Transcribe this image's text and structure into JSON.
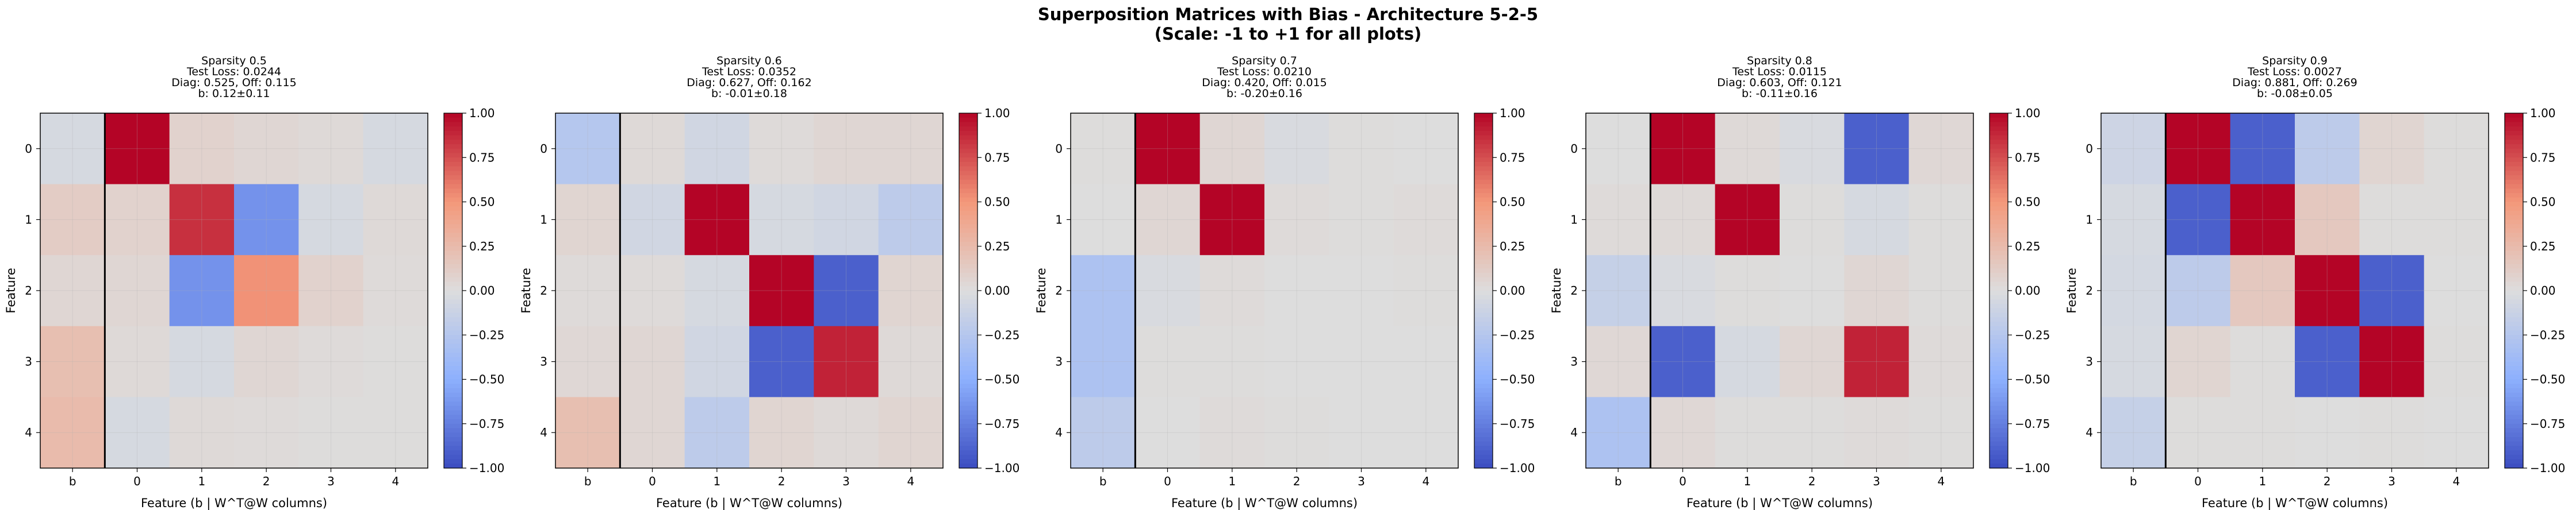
{
  "figure": {
    "title_line1": "Superposition Matrices with Bias - Architecture 5-2-5",
    "title_line2": "(Scale: -1 to +1 for all plots)"
  },
  "chart_data": [
    {
      "type": "heatmap",
      "title": [
        "Sparsity 0.5",
        "Test Loss: 0.0244",
        "Diag: 0.525, Off: 0.115",
        "b: 0.12±0.11"
      ],
      "xlabel": "Feature (b | W^T@W columns)",
      "ylabel": "Feature",
      "x_ticklabels": [
        "b",
        "0",
        "1",
        "2",
        "3",
        "4"
      ],
      "y_ticklabels": [
        "0",
        "1",
        "2",
        "3",
        "4"
      ],
      "colorbar_ticks": [
        "1.00",
        "0.75",
        "0.50",
        "0.25",
        "0.00",
        "−0.25",
        "−0.50",
        "−0.75",
        "−1.00"
      ],
      "clim": [
        -1,
        1
      ],
      "colormap": "coolwarm",
      "values": [
        [
          -0.05,
          1.0,
          0.08,
          0.05,
          0.03,
          -0.05
        ],
        [
          0.12,
          0.08,
          0.85,
          -0.65,
          -0.05,
          0.03
        ],
        [
          0.05,
          0.05,
          -0.65,
          0.52,
          0.08,
          0.02
        ],
        [
          0.22,
          0.03,
          -0.05,
          0.05,
          0.02,
          0.01
        ],
        [
          0.25,
          -0.05,
          0.03,
          0.02,
          0.01,
          0.01
        ]
      ]
    },
    {
      "type": "heatmap",
      "title": [
        "Sparsity 0.6",
        "Test Loss: 0.0352",
        "Diag: 0.627, Off: 0.162",
        "b: -0.01±0.18"
      ],
      "xlabel": "Feature (b | W^T@W columns)",
      "ylabel": "Feature",
      "x_ticklabels": [
        "b",
        "0",
        "1",
        "2",
        "3",
        "4"
      ],
      "y_ticklabels": [
        "0",
        "1",
        "2",
        "3",
        "4"
      ],
      "colorbar_ticks": [
        "1.00",
        "0.75",
        "0.50",
        "0.25",
        "0.00",
        "−0.25",
        "−0.50",
        "−0.75",
        "−1.00"
      ],
      "clim": [
        -1,
        1
      ],
      "colormap": "coolwarm",
      "values": [
        [
          -0.25,
          0.03,
          -0.08,
          0.02,
          0.05,
          0.05
        ],
        [
          0.06,
          -0.08,
          1.0,
          -0.05,
          -0.08,
          -0.2
        ],
        [
          0.02,
          0.02,
          -0.05,
          1.0,
          -0.9,
          0.06
        ],
        [
          0.04,
          0.05,
          -0.08,
          -0.9,
          0.9,
          0.03
        ],
        [
          0.22,
          0.05,
          -0.2,
          0.06,
          0.03,
          0.06
        ]
      ]
    },
    {
      "type": "heatmap",
      "title": [
        "Sparsity 0.7",
        "Test Loss: 0.0210",
        "Diag: 0.420, Off: 0.015",
        "b: -0.20±0.16"
      ],
      "xlabel": "Feature (b | W^T@W columns)",
      "ylabel": "Feature",
      "x_ticklabels": [
        "b",
        "0",
        "1",
        "2",
        "3",
        "4"
      ],
      "y_ticklabels": [
        "0",
        "1",
        "2",
        "3",
        "4"
      ],
      "colorbar_ticks": [
        "1.00",
        "0.75",
        "0.50",
        "0.25",
        "0.00",
        "−0.25",
        "−0.50",
        "−0.75",
        "−1.00"
      ],
      "clim": [
        -1,
        1
      ],
      "colormap": "coolwarm",
      "values": [
        [
          0.01,
          1.0,
          0.05,
          -0.03,
          0.01,
          0.0
        ],
        [
          0.0,
          0.05,
          1.0,
          0.02,
          0.01,
          0.02
        ],
        [
          -0.3,
          -0.03,
          0.02,
          0.0,
          0.0,
          0.01
        ],
        [
          -0.3,
          0.01,
          0.01,
          0.0,
          0.0,
          0.0
        ],
        [
          -0.2,
          0.0,
          0.02,
          0.01,
          0.0,
          0.0
        ]
      ]
    },
    {
      "type": "heatmap",
      "title": [
        "Sparsity 0.8",
        "Test Loss: 0.0115",
        "Diag: 0.603, Off: 0.121",
        "b: -0.11±0.16"
      ],
      "xlabel": "Feature (b | W^T@W columns)",
      "ylabel": "Feature",
      "x_ticklabels": [
        "b",
        "0",
        "1",
        "2",
        "3",
        "4"
      ],
      "y_ticklabels": [
        "0",
        "1",
        "2",
        "3",
        "4"
      ],
      "colorbar_ticks": [
        "1.00",
        "0.75",
        "0.50",
        "0.25",
        "0.00",
        "−0.25",
        "−0.50",
        "−0.75",
        "−1.00"
      ],
      "clim": [
        -1,
        1
      ],
      "colormap": "coolwarm",
      "values": [
        [
          0.0,
          1.0,
          0.03,
          -0.03,
          -0.9,
          0.04
        ],
        [
          0.02,
          0.03,
          1.0,
          0.01,
          -0.05,
          0.01
        ],
        [
          -0.15,
          -0.03,
          0.01,
          0.0,
          0.05,
          0.01
        ],
        [
          0.04,
          -0.9,
          -0.05,
          0.05,
          0.9,
          0.02
        ],
        [
          -0.3,
          0.04,
          0.01,
          0.01,
          0.02,
          0.01
        ]
      ]
    },
    {
      "type": "heatmap",
      "title": [
        "Sparsity 0.9",
        "Test Loss: 0.0027",
        "Diag: 0.881, Off: 0.269",
        "b: -0.08±0.05"
      ],
      "xlabel": "Feature (b | W^T@W columns)",
      "ylabel": "Feature",
      "x_ticklabels": [
        "b",
        "0",
        "1",
        "2",
        "3",
        "4"
      ],
      "y_ticklabels": [
        "0",
        "1",
        "2",
        "3",
        "4"
      ],
      "colorbar_ticks": [
        "1.00",
        "0.75",
        "0.50",
        "0.25",
        "0.00",
        "−0.25",
        "−0.50",
        "−0.75",
        "−1.00"
      ],
      "clim": [
        -1,
        1
      ],
      "colormap": "coolwarm",
      "values": [
        [
          -0.1,
          1.0,
          -0.9,
          -0.2,
          0.06,
          0.01
        ],
        [
          -0.05,
          -0.9,
          1.0,
          0.15,
          0.01,
          0.01
        ],
        [
          -0.06,
          -0.2,
          0.15,
          1.0,
          -0.9,
          0.0
        ],
        [
          -0.05,
          0.06,
          0.01,
          -0.9,
          1.0,
          0.01
        ],
        [
          -0.15,
          0.01,
          0.01,
          0.0,
          0.01,
          0.0
        ]
      ]
    }
  ]
}
